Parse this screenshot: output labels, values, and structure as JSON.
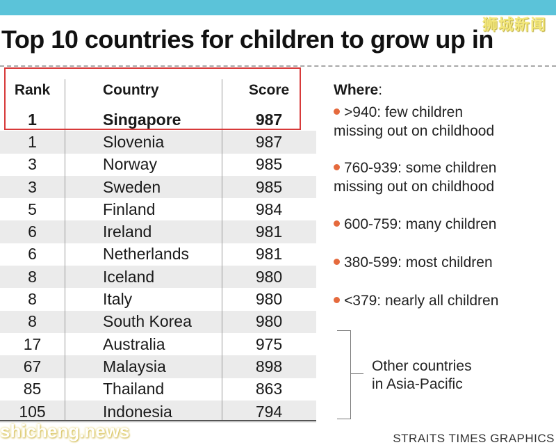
{
  "watermark": {
    "top": "狮城新闻",
    "bottom": "shicheng.news"
  },
  "title": "Top 10 countries for children to grow up in",
  "credit": "STRAITS TIMES GRAPHICS",
  "chart_data": {
    "type": "table",
    "columns": [
      "Rank",
      "Country",
      "Score"
    ],
    "rows": [
      {
        "rank": "1",
        "country": "Singapore",
        "score": "987",
        "highlight": true
      },
      {
        "rank": "1",
        "country": "Slovenia",
        "score": "987"
      },
      {
        "rank": "3",
        "country": "Norway",
        "score": "985"
      },
      {
        "rank": "3",
        "country": "Sweden",
        "score": "985"
      },
      {
        "rank": "5",
        "country": "Finland",
        "score": "984"
      },
      {
        "rank": "6",
        "country": "Ireland",
        "score": "981"
      },
      {
        "rank": "6",
        "country": "Netherlands",
        "score": "981"
      },
      {
        "rank": "8",
        "country": "Iceland",
        "score": "980"
      },
      {
        "rank": "8",
        "country": "Italy",
        "score": "980"
      },
      {
        "rank": "8",
        "country": "South Korea",
        "score": "980"
      },
      {
        "rank": "17",
        "country": "Australia",
        "score": "975"
      },
      {
        "rank": "67",
        "country": "Malaysia",
        "score": "898"
      },
      {
        "rank": "85",
        "country": "Thailand",
        "score": "863"
      },
      {
        "rank": "105",
        "country": "Indonesia",
        "score": "794"
      }
    ],
    "legend": {
      "title": "Where",
      "items": [
        ">940: few children\nmissing out on childhood",
        "760-939: some children\nmissing out on childhood",
        "600-759: many children",
        "380-599: most children",
        "<379: nearly all children"
      ]
    },
    "annotation": "Other countries\nin Asia-Pacific",
    "colors": {
      "bullet": "#e56a3d",
      "highlight_box": "#d73a3a",
      "shade": "#ebebeb"
    }
  }
}
